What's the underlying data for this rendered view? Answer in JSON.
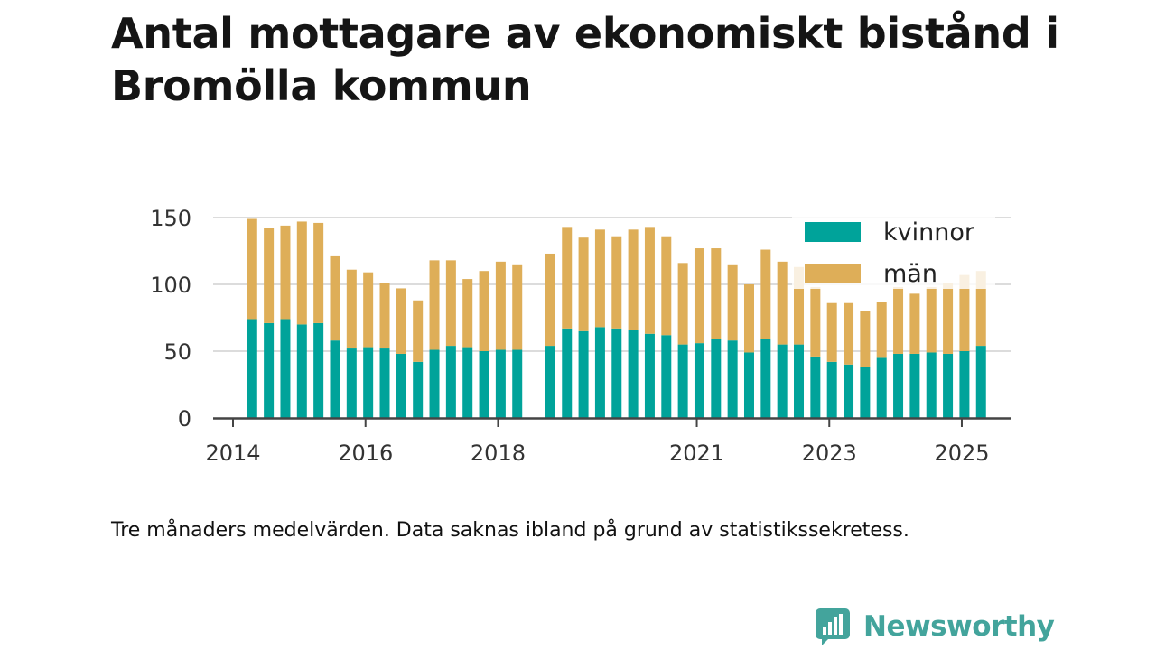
{
  "title": "Antal mottagare av ekonomiskt bistånd i Bromölla kommun",
  "caption": "Tre månaders medelvärden. Data saknas ibland på grund av statistikssekretess.",
  "brand": {
    "name": "Newsworthy",
    "icon": "newsworthy-logo-icon",
    "color": "#43a49c"
  },
  "chart_data": {
    "type": "bar",
    "stacked": true,
    "title": "Antal mottagare av ekonomiskt bistånd i Bromölla kommun",
    "xlabel": "",
    "ylabel": "",
    "ylim": [
      0,
      150
    ],
    "yticks": [
      0,
      50,
      100,
      150
    ],
    "xticks": [
      {
        "label": "2014",
        "x": 2014
      },
      {
        "label": "2016",
        "x": 2016
      },
      {
        "label": "2018",
        "x": 2018
      },
      {
        "label": "2021",
        "x": 2021
      },
      {
        "label": "2023",
        "x": 2023
      },
      {
        "label": "2025",
        "x": 2025
      }
    ],
    "xlim": [
      2013.7,
      2025.75
    ],
    "grid": true,
    "legend_position": "top-right",
    "x": [
      2014.29,
      2014.54,
      2014.79,
      2015.04,
      2015.29,
      2015.54,
      2015.79,
      2016.04,
      2016.29,
      2016.54,
      2016.79,
      2017.04,
      2017.29,
      2017.54,
      2017.79,
      2018.04,
      2018.29,
      2018.79,
      2019.04,
      2019.29,
      2019.54,
      2019.79,
      2020.04,
      2020.29,
      2020.54,
      2020.79,
      2021.04,
      2021.29,
      2021.54,
      2021.79,
      2022.04,
      2022.29,
      2022.54,
      2022.79,
      2023.04,
      2023.29,
      2023.54,
      2023.79,
      2024.04,
      2024.29,
      2024.54,
      2024.79,
      2025.04,
      2025.29
    ],
    "series": [
      {
        "name": "kvinnor",
        "color": "#00a39a",
        "values": [
          74,
          71,
          74,
          70,
          71,
          58,
          52,
          53,
          52,
          48,
          42,
          51,
          54,
          53,
          50,
          51,
          51,
          54,
          67,
          65,
          68,
          67,
          66,
          63,
          62,
          55,
          56,
          59,
          58,
          49,
          59,
          55,
          55,
          46,
          42,
          40,
          38,
          45,
          48,
          48,
          49,
          48,
          50,
          54
        ]
      },
      {
        "name": "män",
        "color": "#deae58",
        "values": [
          75,
          71,
          70,
          77,
          75,
          63,
          59,
          56,
          49,
          49,
          46,
          67,
          64,
          51,
          60,
          66,
          64,
          69,
          76,
          70,
          73,
          69,
          75,
          80,
          74,
          61,
          71,
          68,
          57,
          51,
          67,
          62,
          58,
          52,
          44,
          46,
          42,
          42,
          50,
          45,
          49,
          53,
          57,
          56
        ]
      }
    ]
  }
}
